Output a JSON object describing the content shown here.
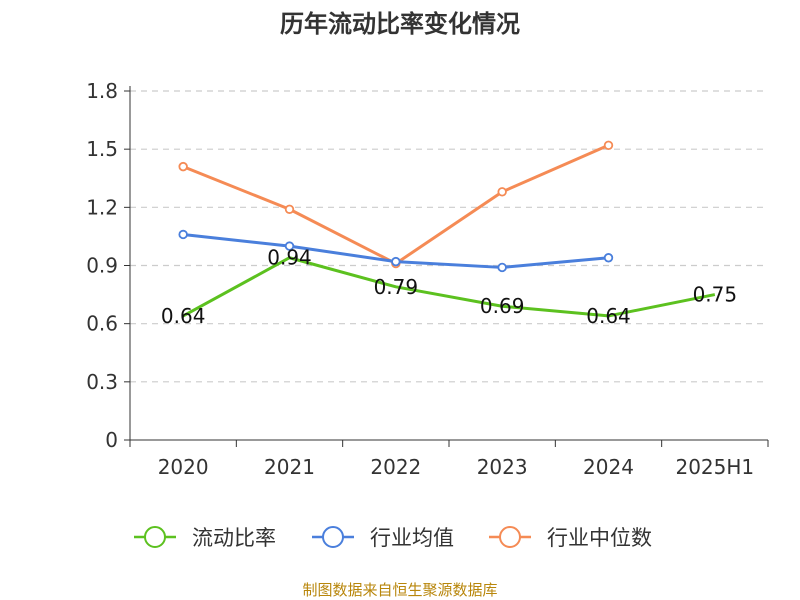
{
  "chart_data": {
    "type": "line",
    "title": "历年流动比率变化情况",
    "categories": [
      "2020",
      "2021",
      "2022",
      "2023",
      "2024",
      "2025H1"
    ],
    "y_ticks": [
      "0",
      "0.3",
      "0.6",
      "0.9",
      "1.2",
      "1.5",
      "1.8"
    ],
    "ylim": [
      0,
      1.8
    ],
    "grid": "horizontal dashed",
    "legend_position": "bottom",
    "series": [
      {
        "name": "流动比率",
        "color": "#5cc11f",
        "values": [
          0.64,
          0.94,
          0.79,
          0.69,
          0.64,
          0.75
        ],
        "labels": [
          "0.64",
          "0.94",
          "0.79",
          "0.69",
          "0.64",
          "0.75"
        ],
        "show_markers": false
      },
      {
        "name": "行业均值",
        "color": "#4a7fdc",
        "values": [
          1.06,
          1.0,
          0.92,
          0.89,
          0.94,
          null
        ],
        "show_markers": true
      },
      {
        "name": "行业中位数",
        "color": "#f58b55",
        "values": [
          1.41,
          1.19,
          0.91,
          1.28,
          1.52,
          null
        ],
        "show_markers": true
      }
    ]
  },
  "source_text": "制图数据来自恒生聚源数据库"
}
